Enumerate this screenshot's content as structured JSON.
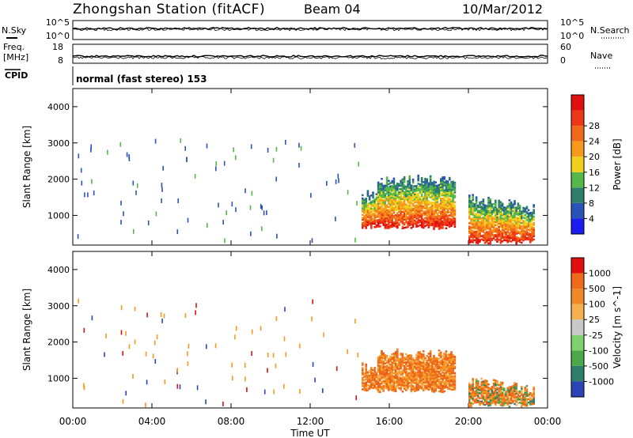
{
  "header": {
    "station": "Zhongshan Station (fitACF)",
    "beam": "Beam 04",
    "date": "10/Mar/2012"
  },
  "strips": {
    "nsky_label": "N.Sky",
    "nsearch_label": "N.Search",
    "noise_top_tick": "10^5",
    "noise_bottom_tick": "10^0",
    "freq_label_1": "Freq.",
    "freq_label_2": "[MHz]",
    "freq_ticks": [
      "18",
      "8"
    ],
    "nave_label": "Nave",
    "nave_ticks": [
      "60",
      "0"
    ],
    "cpid_label": "CPID",
    "cpid_text": "normal (fast stereo) 153"
  },
  "chart_data": [
    {
      "type": "heatmap",
      "parameter": "Power",
      "ylabel": "Slant Range [km]",
      "ylim": [
        180,
        4500
      ],
      "yticks": [
        "1000",
        "2000",
        "3000",
        "4000"
      ],
      "colorbar_label": "Power [dB]",
      "colorbar_ticks": [
        "4",
        "8",
        "12",
        "16",
        "20",
        "24",
        "28"
      ],
      "colorbar_colors": [
        "#1c1cf0",
        "#2a52b8",
        "#2f7e6c",
        "#55b848",
        "#f0d21c",
        "#f59a1c",
        "#f06a1c",
        "#ec3818",
        "#e01010"
      ],
      "colorbar_range": [
        0,
        32
      ],
      "echo_regions_hours": [
        {
          "start": 14.6,
          "end": 19.3,
          "range_km": [
            600,
            2100
          ]
        },
        {
          "start": 20.0,
          "end": 23.3,
          "range_km": [
            200,
            1600
          ]
        }
      ]
    },
    {
      "type": "heatmap",
      "parameter": "Velocity",
      "ylabel": "Slant Range [km]",
      "ylim": [
        180,
        4500
      ],
      "yticks": [
        "1000",
        "2000",
        "3000",
        "4000"
      ],
      "colorbar_label": "Velocity [m s^-1]",
      "colorbar_ticks": [
        "1000",
        "500",
        "100",
        "25",
        "-25",
        "-100",
        "-500",
        "-1000"
      ],
      "colorbar_colors": [
        "#2a44b8",
        "#2f7e6c",
        "#4aa848",
        "#7ed26e",
        "#c8c8c8",
        "#f5b050",
        "#f08a28",
        "#f06a1c",
        "#e01010"
      ],
      "echo_regions_hours": [
        {
          "start": 14.6,
          "end": 19.3,
          "range_km": [
            600,
            1800
          ]
        },
        {
          "start": 20.0,
          "end": 23.3,
          "range_km": [
            200,
            1100
          ]
        }
      ]
    }
  ],
  "xaxis": {
    "ticks": [
      "00:00",
      "04:00",
      "08:00",
      "12:00",
      "16:00",
      "20:00",
      "00:00"
    ],
    "label": "Time UT",
    "range_hours": [
      0,
      24
    ]
  }
}
